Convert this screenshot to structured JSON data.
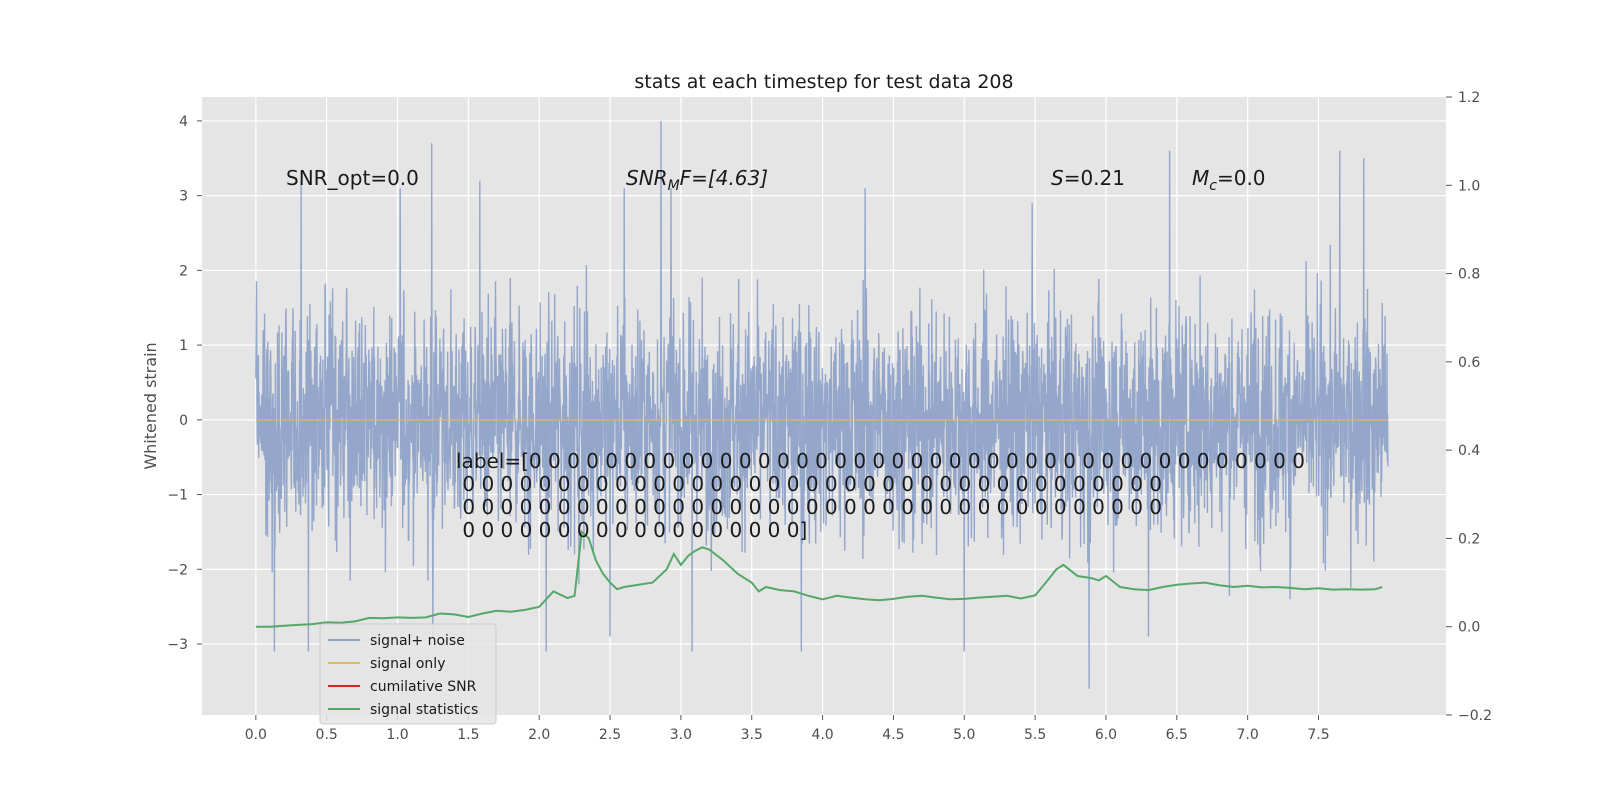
{
  "chart_data": {
    "type": "line",
    "title": "stats at each timestep for test data 208",
    "ylabel": "Whitened strain",
    "xlim": [
      -0.38,
      8.4
    ],
    "ylim": [
      -3.95,
      4.32
    ],
    "y2lim": [
      -0.2,
      1.2
    ],
    "x_ticks": [
      0.0,
      0.5,
      1.0,
      1.5,
      2.0,
      2.5,
      3.0,
      3.5,
      4.0,
      4.5,
      5.0,
      5.5,
      6.0,
      6.5,
      7.0,
      7.5
    ],
    "x_tick_labels": [
      "0.0",
      "0.5",
      "1.0",
      "1.5",
      "2.0",
      "2.5",
      "3.0",
      "3.5",
      "4.0",
      "4.5",
      "5.0",
      "5.5",
      "6.0",
      "6.5",
      "7.0",
      "7.5"
    ],
    "y_ticks": [
      4,
      3,
      2,
      1,
      0,
      -1,
      -2,
      -3
    ],
    "y_tick_labels": [
      "4",
      "3",
      "2",
      "1",
      "0",
      "−1",
      "−2",
      "−3"
    ],
    "y2_ticks": [
      1.2,
      1.0,
      0.8,
      0.6,
      0.4,
      0.2,
      0.0,
      -0.2
    ],
    "y2_tick_labels": [
      "1.2",
      "1.0",
      "0.8",
      "0.6",
      "0.4",
      "0.2",
      "0.0",
      "−0.2"
    ],
    "grid": true,
    "legend_placement": "lower-left",
    "annotations": {
      "snr_opt": "SNR_opt=0.0",
      "snr_mf_main": "SNR",
      "snr_mf_sub": "M",
      "snr_mf_rest": "F=[4.63]",
      "s_sym": "S",
      "s_rest": "=0.21",
      "mc_sym": "M",
      "mc_sub": "c",
      "mc_rest": "=0.0",
      "label_lines": [
        "label=[0 0 0 0 0 0 0 0 0 0 0 0 0 0 0 0 0 0 0 0 0 0 0 0 0 0 0 0 0 0 0 0 0 0 0 0 0 0 0 0 0",
        " 0 0 0 0 0 0 0 0 0 0 0 0 0 0 0 0 0 0 0 0 0 0 0 0 0 0 0 0 0 0 0 0 0 0 0 0 0",
        " 0 0 0 0 0 0 0 0 0 0 0 0 0 0 0 0 0 0 0 0 0 0 0 0 0 0 0 0 0 0 0 0 0 0 0 0 0",
        " 0 0 0 0 0 0 0 0 0 0 0 0 0 0 0 0 0 0]"
      ]
    },
    "series": [
      {
        "name": "signal+ noise",
        "color": "#8fa3c9",
        "axis": "left",
        "x_range": [
          0.0,
          7.99
        ],
        "envelope_note": "dense noise, mostly within [-2, 2], peaks near 4 and -3.6",
        "spikes": [
          [
            0.32,
            3.2
          ],
          [
            0.37,
            -3.1
          ],
          [
            0.13,
            -3.1
          ],
          [
            1.02,
            3.1
          ],
          [
            1.24,
            3.7
          ],
          [
            1.25,
            -2.9
          ],
          [
            1.58,
            3.2
          ],
          [
            2.05,
            -3.1
          ],
          [
            2.28,
            -2.2
          ],
          [
            2.6,
            3.1
          ],
          [
            2.86,
            4.0
          ],
          [
            2.93,
            3.1
          ],
          [
            2.5,
            -2.9
          ],
          [
            3.08,
            -3.1
          ],
          [
            3.85,
            -3.1
          ],
          [
            4.3,
            3.1
          ],
          [
            5.0,
            -3.1
          ],
          [
            5.48,
            2.9
          ],
          [
            5.88,
            -3.6
          ],
          [
            6.45,
            3.6
          ],
          [
            6.3,
            -2.9
          ],
          [
            7.3,
            -2.4
          ],
          [
            7.65,
            3.6
          ],
          [
            7.82,
            3.5
          ],
          [
            7.89,
            -1.9
          ]
        ]
      },
      {
        "name": "signal only",
        "color": "#e8b85a",
        "axis": "left",
        "x": [
          0.0,
          7.99
        ],
        "y": [
          0.0,
          0.0
        ]
      },
      {
        "name": "cumilative SNR",
        "color": "#d62728",
        "axis": "right",
        "x": [],
        "y": []
      },
      {
        "name": "signal statistics",
        "color": "#55a868",
        "axis": "right",
        "x": [
          0.0,
          0.1,
          0.2,
          0.3,
          0.4,
          0.5,
          0.6,
          0.7,
          0.8,
          0.9,
          1.0,
          1.1,
          1.2,
          1.3,
          1.4,
          1.5,
          1.6,
          1.7,
          1.8,
          1.9,
          2.0,
          2.1,
          2.2,
          2.25,
          2.3,
          2.35,
          2.4,
          2.45,
          2.5,
          2.55,
          2.6,
          2.7,
          2.8,
          2.9,
          2.95,
          3.0,
          3.05,
          3.1,
          3.15,
          3.2,
          3.3,
          3.4,
          3.5,
          3.55,
          3.6,
          3.7,
          3.8,
          3.9,
          4.0,
          4.1,
          4.2,
          4.3,
          4.4,
          4.5,
          4.6,
          4.7,
          4.8,
          4.9,
          5.0,
          5.1,
          5.2,
          5.3,
          5.4,
          5.5,
          5.55,
          5.6,
          5.65,
          5.7,
          5.8,
          5.9,
          5.95,
          6.0,
          6.1,
          6.2,
          6.3,
          6.4,
          6.5,
          6.6,
          6.7,
          6.8,
          6.9,
          7.0,
          7.1,
          7.2,
          7.3,
          7.4,
          7.5,
          7.6,
          7.7,
          7.8,
          7.9,
          7.95
        ],
        "y": [
          0.0,
          0.0,
          0.002,
          0.004,
          0.006,
          0.01,
          0.009,
          0.012,
          0.02,
          0.019,
          0.021,
          0.02,
          0.021,
          0.03,
          0.028,
          0.022,
          0.03,
          0.036,
          0.034,
          0.038,
          0.045,
          0.08,
          0.065,
          0.07,
          0.215,
          0.2,
          0.15,
          0.12,
          0.1,
          0.085,
          0.09,
          0.095,
          0.1,
          0.13,
          0.165,
          0.14,
          0.16,
          0.172,
          0.18,
          0.175,
          0.15,
          0.12,
          0.1,
          0.08,
          0.09,
          0.083,
          0.08,
          0.07,
          0.062,
          0.07,
          0.066,
          0.062,
          0.06,
          0.063,
          0.068,
          0.07,
          0.066,
          0.062,
          0.063,
          0.066,
          0.068,
          0.07,
          0.064,
          0.071,
          0.09,
          0.11,
          0.13,
          0.14,
          0.115,
          0.11,
          0.105,
          0.115,
          0.09,
          0.085,
          0.083,
          0.09,
          0.095,
          0.098,
          0.1,
          0.094,
          0.09,
          0.093,
          0.089,
          0.09,
          0.088,
          0.085,
          0.087,
          0.084,
          0.085,
          0.084,
          0.085,
          0.09
        ]
      }
    ]
  }
}
